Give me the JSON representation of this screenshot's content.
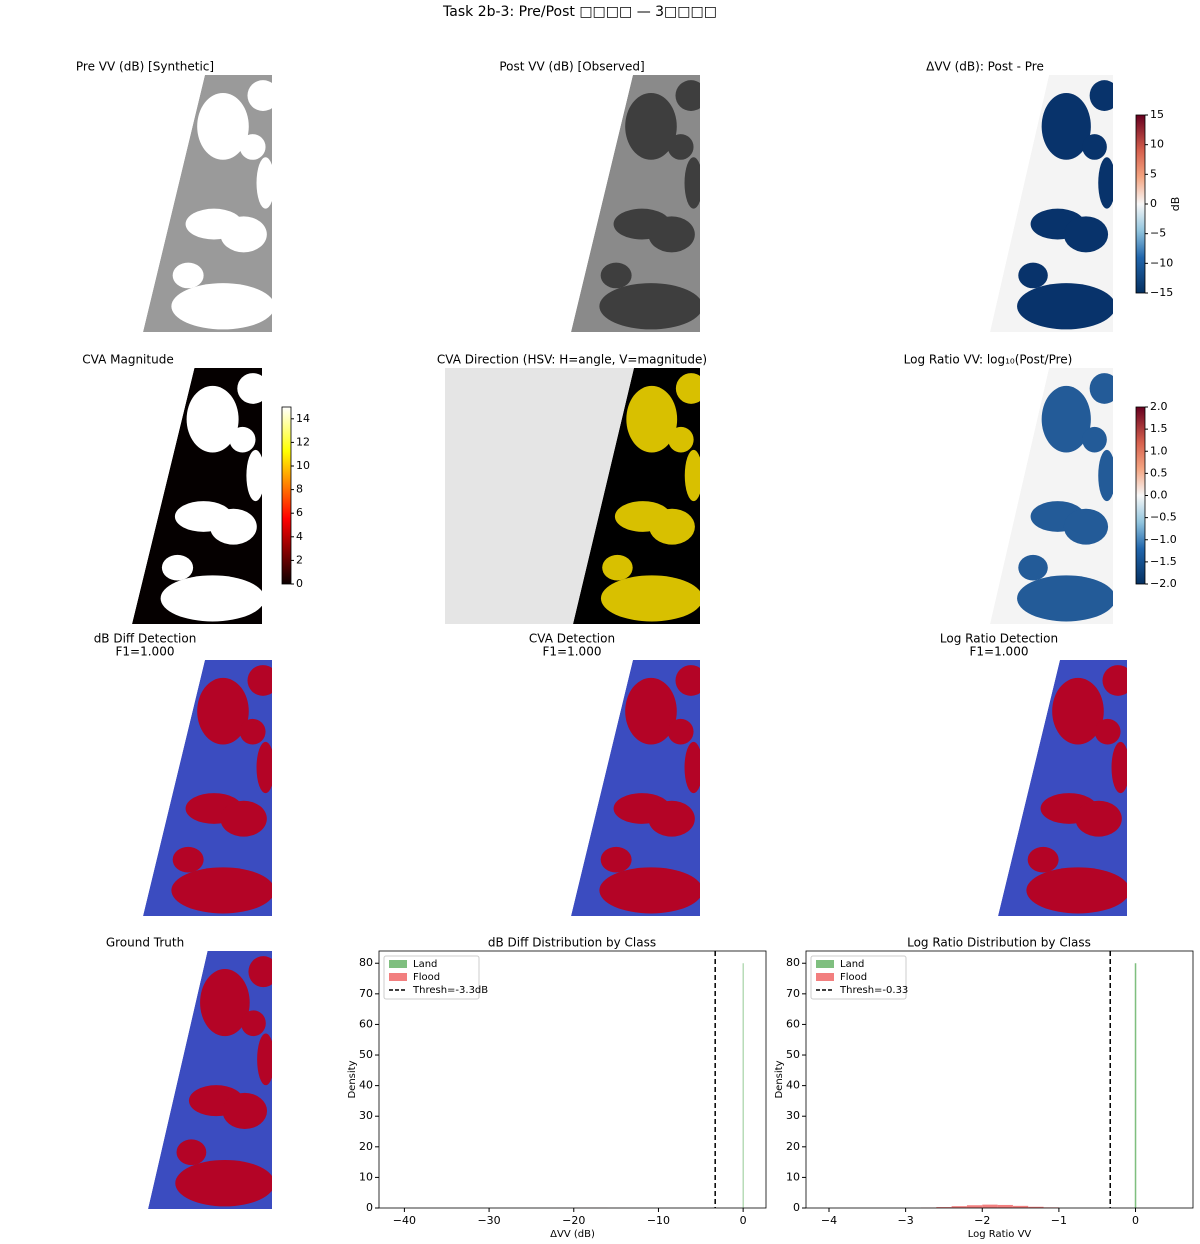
{
  "title": "Task 2b-3: Pre/Post □□□□ — 3□□□□",
  "chart_data": [
    {
      "type": "image",
      "title": "Pre VV (dB) [Synthetic]"
    },
    {
      "type": "image",
      "title": "Post VV (dB) [Observed]"
    },
    {
      "type": "image",
      "title": "ΔVV (dB): Post - Pre",
      "colorbar": {
        "label": "dB",
        "ylim": [
          -15,
          15
        ],
        "yticks": [
          {
            "value": -15,
            "label": "−15"
          },
          {
            "value": -10,
            "label": "−10"
          },
          {
            "value": -5,
            "label": "−5"
          },
          0,
          5,
          10,
          15
        ]
      }
    },
    {
      "type": "image",
      "title": "CVA Magnitude",
      "colorbar": {
        "ylim": [
          0,
          15
        ],
        "yticks": [
          0,
          2,
          4,
          6,
          8,
          10,
          12,
          14
        ]
      }
    },
    {
      "type": "image",
      "title": "CVA Direction (HSV: H=angle, V=magnitude)"
    },
    {
      "type": "image",
      "title": "Log Ratio VV: log₁₀(Post/Pre)",
      "colorbar": {
        "ylim": [
          -2,
          2
        ],
        "yticks": [
          {
            "value": -2,
            "label": "−2.0"
          },
          {
            "value": -1.5,
            "label": "−1.5"
          },
          {
            "value": -1,
            "label": "−1.0"
          },
          {
            "value": -0.5,
            "label": "−0.5"
          },
          {
            "value": 0,
            "label": "0.0"
          },
          0.5,
          {
            "value": 1,
            "label": "1.0"
          },
          1.5,
          {
            "value": 2,
            "label": "2.0"
          }
        ]
      }
    },
    {
      "type": "image",
      "title": "dB Diff Detection",
      "subtitle": "F1=1.000"
    },
    {
      "type": "image",
      "title": "CVA Detection",
      "subtitle": "F1=1.000"
    },
    {
      "type": "image",
      "title": "Log Ratio Detection",
      "subtitle": "F1=1.000"
    },
    {
      "type": "image",
      "title": "Ground Truth"
    },
    {
      "type": "histogram",
      "title": "dB Diff Distribution by Class",
      "xlabel": "ΔVV (dB)",
      "ylabel": "Density",
      "xlim": [
        -43,
        2.7
      ],
      "xticks": [
        {
          "value": -40,
          "label": "−40"
        },
        {
          "value": -30,
          "label": "−30"
        },
        {
          "value": -20,
          "label": "−20"
        },
        {
          "value": -10,
          "label": "−10"
        },
        0
      ],
      "ylim": [
        0,
        84
      ],
      "yticks": [
        0,
        10,
        20,
        30,
        40,
        50,
        60,
        70,
        80
      ],
      "legend": "upper left",
      "series": [
        {
          "name": "Land",
          "color": "#7fbf7f",
          "bins": [
            -0.05,
            0.05
          ],
          "values": [
            80
          ]
        },
        {
          "name": "Flood",
          "color": "#f27f7f",
          "bins": [
            -22,
            -20,
            -18,
            -16,
            -14
          ],
          "values": [
            0.02,
            0.05,
            0.05,
            0.02
          ]
        }
      ],
      "threshold": {
        "value": -3.3,
        "name": "Thresh=-3.3dB"
      }
    },
    {
      "type": "histogram",
      "title": "Log Ratio Distribution by Class",
      "xlabel": "Log Ratio VV",
      "ylabel": "Density",
      "xlim": [
        -4.3,
        0.75
      ],
      "xticks": [
        {
          "value": -4,
          "label": "−4"
        },
        {
          "value": -3,
          "label": "−3"
        },
        {
          "value": -2,
          "label": "−2"
        },
        {
          "value": -1,
          "label": "−1"
        },
        0
      ],
      "ylim": [
        0,
        84
      ],
      "yticks": [
        0,
        10,
        20,
        30,
        40,
        50,
        60,
        70,
        80
      ],
      "legend": "upper left",
      "series": [
        {
          "name": "Land",
          "color": "#7fbf7f",
          "bins": [
            -0.01,
            0.01
          ],
          "values": [
            80
          ]
        },
        {
          "name": "Flood",
          "color": "#f27f7f",
          "bins": [
            -2.8,
            -2.6,
            -2.4,
            -2.2,
            -2.0,
            -1.8,
            -1.6,
            -1.4,
            -1.2,
            -1.0
          ],
          "values": [
            0.1,
            0.3,
            0.6,
            0.9,
            1.1,
            1.0,
            0.7,
            0.4,
            0.2
          ]
        }
      ],
      "threshold": {
        "value": -0.33,
        "name": "Thresh=-0.33"
      }
    }
  ]
}
